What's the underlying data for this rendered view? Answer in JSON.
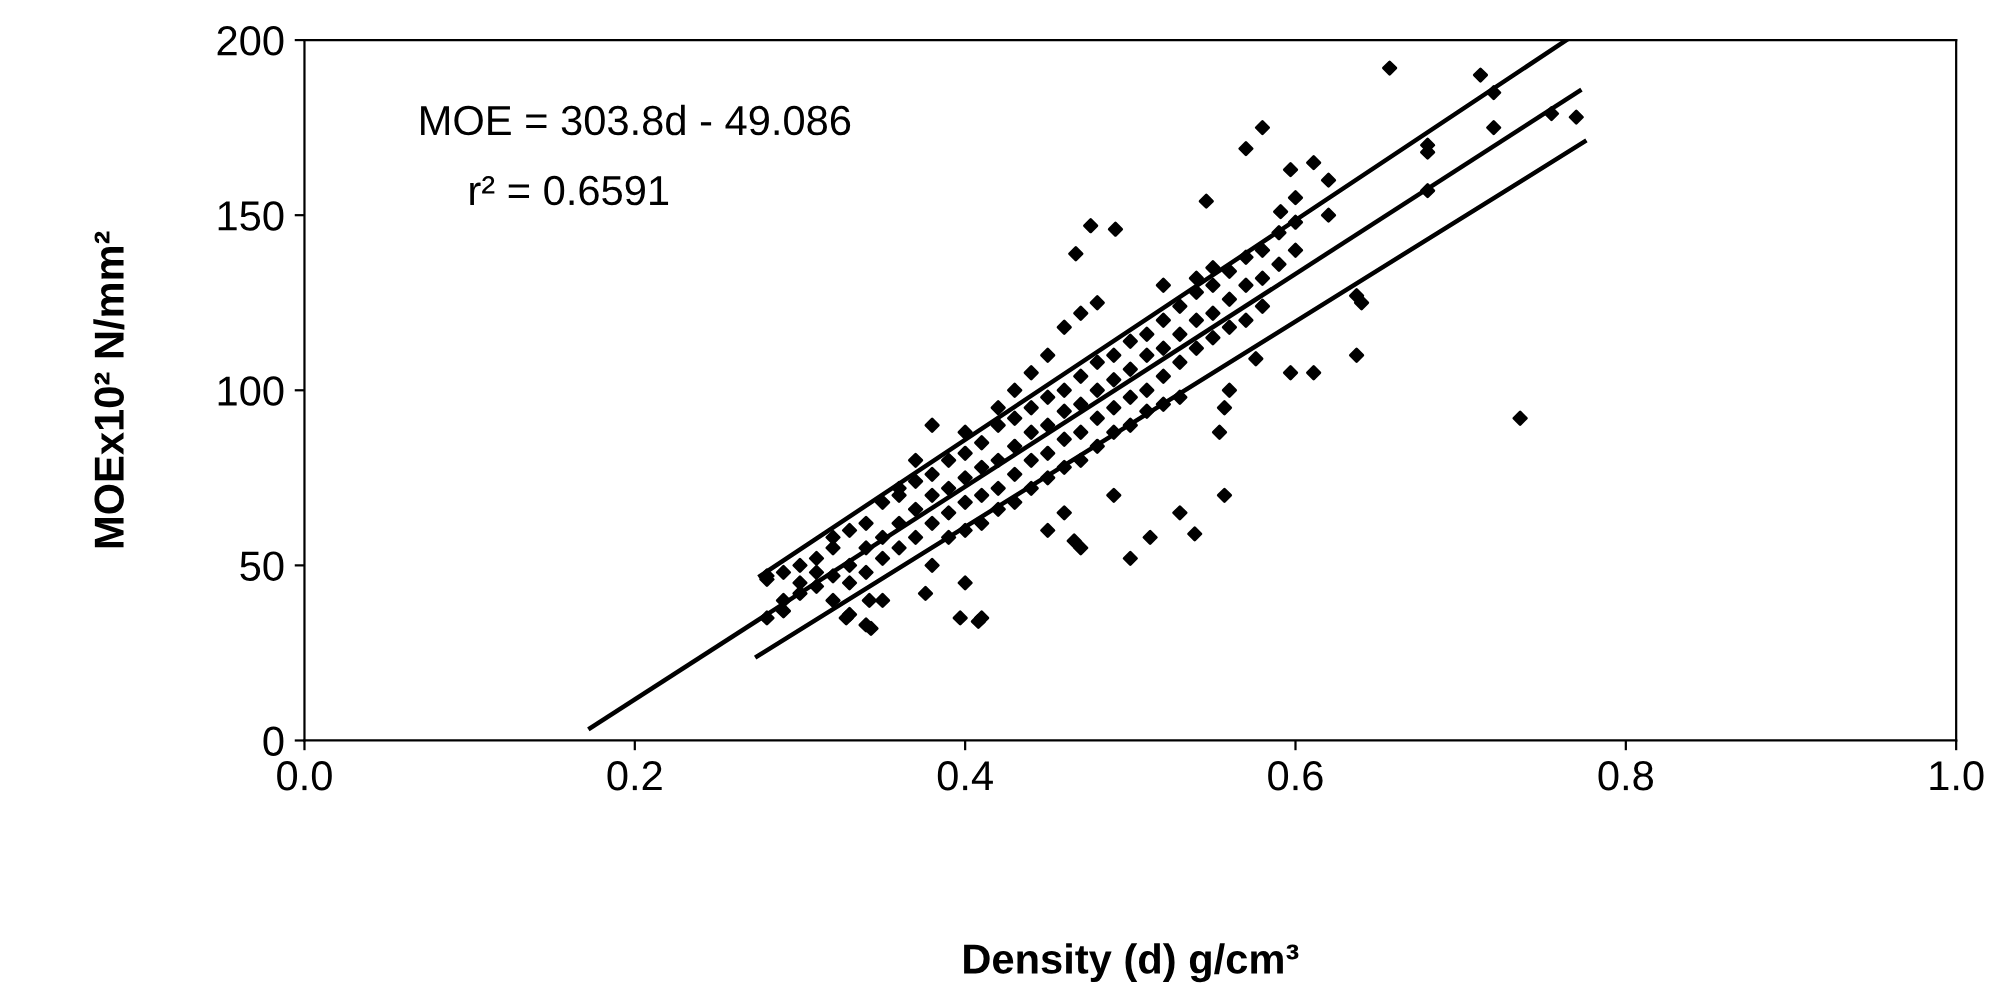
{
  "chart_data": {
    "type": "scatter",
    "xlabel": "Density (d) g/cm³",
    "ylabel": "MOEx10² N/mm²",
    "annotations": [
      "MOE = 303.8d - 49.086",
      "r² = 0.6591"
    ],
    "xlim": [
      0.0,
      1.0
    ],
    "xticks": [
      {
        "value": 0,
        "label": "0.0"
      },
      0.2,
      0.4,
      0.6,
      0.8,
      {
        "value": 1,
        "label": "1.0"
      }
    ],
    "ylim": [
      0,
      200
    ],
    "yticks": [
      0,
      50,
      100,
      150,
      200
    ],
    "grid": false,
    "legend": false,
    "series": [
      {
        "marker": "diamond",
        "color": "#000000",
        "x": [
          0.28,
          0.28,
          0.28,
          0.29,
          0.29,
          0.29,
          0.3,
          0.3,
          0.3,
          0.31,
          0.31,
          0.31,
          0.32,
          0.32,
          0.32,
          0.32,
          0.33,
          0.33,
          0.33,
          0.33,
          0.34,
          0.34,
          0.34,
          0.34,
          0.35,
          0.35,
          0.35,
          0.35,
          0.36,
          0.36,
          0.36,
          0.36,
          0.37,
          0.37,
          0.37,
          0.37,
          0.38,
          0.38,
          0.38,
          0.38,
          0.38,
          0.39,
          0.39,
          0.39,
          0.39,
          0.4,
          0.4,
          0.4,
          0.4,
          0.4,
          0.4,
          0.41,
          0.41,
          0.41,
          0.41,
          0.41,
          0.42,
          0.42,
          0.42,
          0.42,
          0.42,
          0.43,
          0.43,
          0.43,
          0.43,
          0.43,
          0.44,
          0.44,
          0.44,
          0.44,
          0.44,
          0.45,
          0.45,
          0.45,
          0.45,
          0.45,
          0.45,
          0.46,
          0.46,
          0.46,
          0.46,
          0.46,
          0.46,
          0.47,
          0.47,
          0.47,
          0.47,
          0.47,
          0.47,
          0.48,
          0.48,
          0.48,
          0.48,
          0.48,
          0.49,
          0.49,
          0.49,
          0.49,
          0.49,
          0.5,
          0.5,
          0.5,
          0.5,
          0.5,
          0.51,
          0.51,
          0.51,
          0.51,
          0.52,
          0.52,
          0.52,
          0.52,
          0.52,
          0.53,
          0.53,
          0.53,
          0.53,
          0.53,
          0.54,
          0.54,
          0.54,
          0.54,
          0.55,
          0.55,
          0.55,
          0.55,
          0.56,
          0.56,
          0.56,
          0.56,
          0.57,
          0.57,
          0.57,
          0.58,
          0.58,
          0.58,
          0.59,
          0.59,
          0.6,
          0.6,
          0.6,
          0.62,
          0.62,
          0.64,
          0.68,
          0.68,
          0.68,
          0.72,
          0.72,
          0.77,
          0.657,
          0.712,
          0.755,
          0.58,
          0.57,
          0.611,
          0.597,
          0.591,
          0.476,
          0.491,
          0.467,
          0.546,
          0.637,
          0.637,
          0.597,
          0.576,
          0.611,
          0.557,
          0.736,
          0.554,
          0.557,
          0.512,
          0.466,
          0.539,
          0.328,
          0.343,
          0.342,
          0.376,
          0.397,
          0.408
        ],
        "values": [
          35,
          47,
          46,
          48,
          40,
          37,
          45,
          50,
          42,
          52,
          44,
          48,
          55,
          40,
          58,
          47,
          60,
          50,
          45,
          36,
          62,
          55,
          48,
          33,
          68,
          58,
          52,
          40,
          70,
          62,
          55,
          72,
          74,
          66,
          58,
          80,
          76,
          70,
          62,
          90,
          50,
          80,
          72,
          65,
          58,
          82,
          75,
          68,
          60,
          45,
          88,
          85,
          78,
          70,
          62,
          35,
          90,
          80,
          72,
          66,
          95,
          92,
          84,
          76,
          68,
          100,
          95,
          88,
          80,
          72,
          105,
          98,
          90,
          82,
          75,
          110,
          60,
          100,
          94,
          86,
          78,
          118,
          65,
          104,
          96,
          88,
          80,
          122,
          55,
          108,
          100,
          92,
          84,
          125,
          110,
          103,
          95,
          88,
          70,
          114,
          106,
          98,
          90,
          52,
          116,
          110,
          100,
          94,
          120,
          112,
          104,
          96,
          130,
          124,
          116,
          108,
          98,
          65,
          128,
          120,
          112,
          132,
          130,
          122,
          115,
          135,
          134,
          126,
          118,
          100,
          138,
          130,
          120,
          140,
          132,
          124,
          145,
          136,
          148,
          140,
          155,
          150,
          160,
          125,
          168,
          170,
          157,
          185,
          175,
          178,
          192,
          190,
          179,
          175,
          169,
          165,
          163,
          151,
          147,
          146,
          139,
          154,
          127,
          110,
          105,
          109,
          105,
          95,
          92,
          88,
          70,
          58,
          57,
          59,
          35,
          32,
          40,
          42,
          35,
          34
        ]
      },
      {
        "type": "line",
        "color": "#000000",
        "x": [
          0.173,
          0.772
        ],
        "values": [
          3.5,
          185.5
        ]
      },
      {
        "type": "line",
        "color": "#000000",
        "x": [
          0.276,
          0.764
        ],
        "values": [
          47,
          200
        ]
      },
      {
        "type": "line",
        "color": "#000000",
        "x": [
          0.274,
          0.775
        ],
        "values": [
          24,
          171
        ]
      }
    ]
  }
}
